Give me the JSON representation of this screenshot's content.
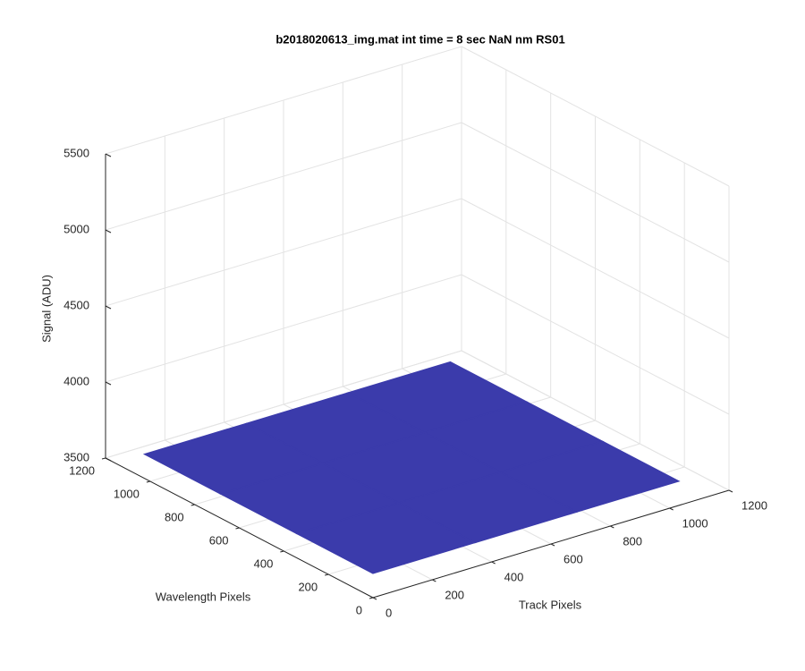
{
  "chart_data": {
    "type": "surface",
    "title": "b2018020613_img.mat int time = 8 sec  NaN nm RS01",
    "xlabel": "Track Pixels",
    "ylabel": "Wavelength Pixels",
    "zlabel": "Signal (ADU)",
    "xlim": [
      0,
      1200
    ],
    "ylim": [
      0,
      1200
    ],
    "zlim": [
      3500,
      5500
    ],
    "xticks": [
      0,
      200,
      400,
      600,
      800,
      1000,
      1200
    ],
    "yticks": [
      0,
      200,
      400,
      600,
      800,
      1000,
      1200
    ],
    "zticks": [
      3500,
      4000,
      4500,
      5000,
      5500
    ],
    "x": [
      0,
      343,
      686,
      1030
    ],
    "y": [
      0,
      341,
      682,
      1024
    ],
    "z": [
      [
        3660,
        3660,
        3660,
        3660
      ],
      [
        3660,
        3660,
        3660,
        3660
      ],
      [
        3660,
        3660,
        3660,
        3660
      ],
      [
        3660,
        3660,
        3660,
        3660
      ]
    ],
    "color": "#3b3bab",
    "grid": true
  }
}
